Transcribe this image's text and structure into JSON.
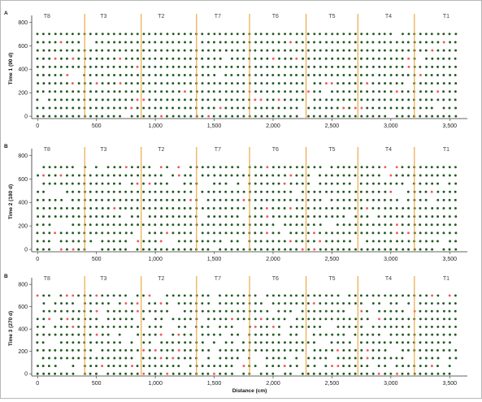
{
  "chart_data": {
    "type": "scatter",
    "xlabel": "Distance (cm)",
    "x_ticks": [
      0,
      500,
      1000,
      1500,
      2000,
      2500,
      3000,
      3500
    ],
    "x_tick_labels": [
      "0",
      "500",
      "1,000",
      "1,500",
      "2,000",
      "2,500",
      "3,000",
      "3,500"
    ],
    "xlim": [
      -50,
      3650
    ],
    "ylim": [
      -20,
      830
    ],
    "y_ticks": [
      0,
      200,
      400,
      600,
      800
    ],
    "y_tick_labels": [
      "0",
      "200",
      "400",
      "600",
      "800"
    ],
    "row_y": [
      0,
      70,
      140,
      210,
      280,
      350,
      420,
      490,
      560,
      630,
      700
    ],
    "dot_spacing_cm": 50,
    "x_start_cm": 0,
    "x_end_cm": 3550,
    "colors": {
      "live": "#1f5a1f",
      "dead": "#f05a5a",
      "divider": "#e8a23a"
    },
    "block_dividers": [
      400,
      880,
      1350,
      1800,
      2280,
      2720,
      3200
    ],
    "treatments": [
      {
        "label": "T8",
        "x": 80
      },
      {
        "label": "T3",
        "x": 560
      },
      {
        "label": "T2",
        "x": 1050
      },
      {
        "label": "T7",
        "x": 1530
      },
      {
        "label": "T6",
        "x": 2020
      },
      {
        "label": "T5",
        "x": 2500
      },
      {
        "label": "T4",
        "x": 2980
      },
      {
        "label": "T1",
        "x": 3470
      }
    ],
    "panels": [
      {
        "letter": "A",
        "ylabel": "Time 1 (90 d)",
        "dead_rate": 0.05,
        "gap_rate": 0.03,
        "seed": 11
      },
      {
        "letter": "B",
        "ylabel": "Time 2 (180 d)",
        "dead_rate": 0.06,
        "gap_rate": 0.1,
        "seed": 29
      },
      {
        "letter": "B",
        "ylabel": "Time 3 (270 d)",
        "dead_rate": 0.08,
        "gap_rate": 0.13,
        "seed": 47
      }
    ]
  }
}
